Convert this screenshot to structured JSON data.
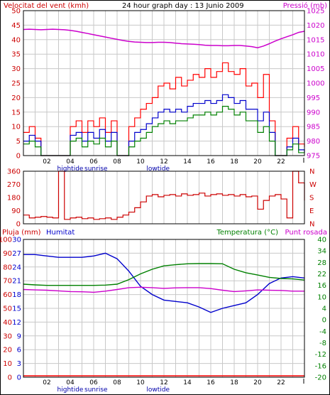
{
  "header": {
    "left_label": "Velocitat del vent (kmh)",
    "center_label": "24 hour graph day : 13 Junio 2009",
    "right_label": "Pressió (mb)"
  },
  "bottom_header": {
    "rain_label": "Pluja (mm)",
    "humidity_label": "Humitat",
    "temp_label": "Temperatura (°C)",
    "dew_label": "Punt rosada"
  },
  "colors": {
    "wind_speed": "#ff0000",
    "wind_avg": "#0000cc",
    "wind_low": "#008000",
    "pressure": "#cc00cc",
    "direction": "#cc0000",
    "humidity": "#0000cc",
    "temperature": "#008000",
    "dew_point": "#cc00cc",
    "rain": "#ff0000",
    "axis_text_left": "#cc0000",
    "axis_text_right": "#cc00cc",
    "marker_text": "#0000aa",
    "grid": "#c8c8c8"
  },
  "x_axis": {
    "hour_ticks": [
      "02",
      "04",
      "06",
      "08",
      "10",
      "12",
      "14",
      "16",
      "18",
      "20",
      "22"
    ],
    "markers": [
      {
        "label": "hightide",
        "hour": 4
      },
      {
        "label": "sunrise",
        "hour": 6.2
      },
      {
        "label": "lowtide",
        "hour": 11.5
      }
    ]
  },
  "chart_data": [
    {
      "type": "line",
      "title": "24 hour graph day : 13 Junio 2009",
      "ylabel": "Velocitat del vent (kmh)",
      "ylim": [
        0,
        50
      ],
      "yticks": [
        "0",
        "5",
        "10",
        "15",
        "20",
        "25",
        "30",
        "35",
        "40",
        "45",
        "50"
      ],
      "y2label": "Pressió (mb)",
      "y2lim": [
        975,
        1025
      ],
      "y2ticks": [
        "975",
        "980",
        "985",
        "990",
        "995",
        "1000",
        "1005",
        "1010",
        "1015",
        "1020",
        "1025"
      ],
      "x_hours": [
        0,
        0.5,
        1,
        1.5,
        2,
        2.5,
        3,
        3.5,
        4,
        4.5,
        5,
        5.5,
        6,
        6.5,
        7,
        7.5,
        8,
        8.5,
        9,
        9.5,
        10,
        10.5,
        11,
        11.5,
        12,
        12.5,
        13,
        13.5,
        14,
        14.5,
        15,
        15.5,
        16,
        16.5,
        17,
        17.5,
        18,
        18.5,
        19,
        19.5,
        20,
        20.5,
        21,
        21.5,
        22,
        22.5,
        23,
        23.5,
        24
      ],
      "series": [
        {
          "name": "gust",
          "values": [
            8,
            10,
            6,
            0,
            0,
            0,
            0,
            0,
            10,
            12,
            8,
            12,
            10,
            13,
            8,
            12,
            0,
            0,
            10,
            13,
            16,
            18,
            20,
            24,
            25,
            23,
            27,
            24,
            26,
            28,
            27,
            30,
            27,
            29,
            32,
            29,
            28,
            30,
            24,
            25,
            20,
            28,
            12,
            0,
            0,
            6,
            10,
            4,
            3
          ]
        },
        {
          "name": "average",
          "values": [
            5,
            7,
            5,
            0,
            0,
            0,
            0,
            0,
            7,
            8,
            5,
            8,
            6,
            9,
            5,
            8,
            0,
            0,
            5,
            8,
            9,
            11,
            13,
            15,
            16,
            15,
            16,
            15,
            17,
            18,
            18,
            19,
            18,
            19,
            21,
            20,
            18,
            19,
            16,
            16,
            12,
            15,
            8,
            0,
            0,
            3,
            6,
            2,
            1
          ]
        },
        {
          "name": "low",
          "values": [
            4,
            5,
            3,
            0,
            0,
            0,
            0,
            0,
            5,
            6,
            3,
            5,
            4,
            6,
            3,
            5,
            0,
            0,
            3,
            5,
            6,
            8,
            10,
            11,
            12,
            11,
            12,
            12,
            13,
            14,
            14,
            15,
            14,
            15,
            17,
            16,
            14,
            15,
            12,
            12,
            8,
            10,
            5,
            0,
            0,
            2,
            4,
            1,
            1
          ]
        },
        {
          "name": "pressure",
          "axis": "y2",
          "values": [
            1018.5,
            1018.6,
            1018.5,
            1018.4,
            1018.5,
            1018.6,
            1018.5,
            1018.4,
            1018.2,
            1017.9,
            1017.5,
            1017.1,
            1016.7,
            1016.3,
            1015.9,
            1015.5,
            1015.1,
            1014.7,
            1014.4,
            1014.2,
            1014.1,
            1014.0,
            1014.0,
            1014.1,
            1014.1,
            1014.0,
            1013.8,
            1013.6,
            1013.5,
            1013.4,
            1013.3,
            1013.1,
            1013.0,
            1013.0,
            1012.9,
            1012.9,
            1013.0,
            1013.0,
            1012.8,
            1012.6,
            1012.2,
            1012.8,
            1013.6,
            1014.5,
            1015.3,
            1016.0,
            1016.7,
            1017.5,
            1017.9
          ]
        }
      ]
    },
    {
      "type": "line",
      "ylabel": "",
      "ylim": [
        0,
        360
      ],
      "yticks": [
        "0",
        "90",
        "180",
        "270",
        "360"
      ],
      "y2ticks": [
        "N",
        "E",
        "S",
        "W",
        "N"
      ],
      "x_hours": [
        0,
        0.5,
        1,
        1.5,
        2,
        2.5,
        3,
        3.5,
        4,
        4.5,
        5,
        5.5,
        6,
        6.5,
        7,
        7.5,
        8,
        8.5,
        9,
        9.5,
        10,
        10.5,
        11,
        11.5,
        12,
        12.5,
        13,
        13.5,
        14,
        14.5,
        15,
        15.5,
        16,
        16.5,
        17,
        17.5,
        18,
        18.5,
        19,
        19.5,
        20,
        20.5,
        21,
        21.5,
        22,
        22.5,
        23,
        23.5,
        24
      ],
      "series": [
        {
          "name": "direction",
          "values": [
            60,
            40,
            45,
            50,
            45,
            40,
            360,
            30,
            40,
            45,
            35,
            40,
            30,
            35,
            40,
            30,
            45,
            60,
            80,
            110,
            150,
            190,
            200,
            185,
            195,
            200,
            190,
            205,
            195,
            200,
            210,
            190,
            200,
            205,
            195,
            200,
            190,
            200,
            185,
            190,
            100,
            160,
            190,
            200,
            170,
            40,
            360,
            280,
            160
          ]
        }
      ]
    },
    {
      "type": "line",
      "ylabel": "Humitat",
      "ylim": [
        0,
        100
      ],
      "yticks": [
        "0",
        "10",
        "20",
        "30",
        "40",
        "50",
        "60",
        "70",
        "80",
        "90",
        "100"
      ],
      "rain_ylim": [
        0,
        30
      ],
      "rain_yticks": [
        "0",
        "3",
        "6",
        "9",
        "12",
        "15",
        "18",
        "21",
        "24",
        "27",
        "30"
      ],
      "y2label": "Temperatura (°C)",
      "y2lim": [
        -20,
        40
      ],
      "y2ticks": [
        "-20",
        "-16",
        "-12",
        "-8",
        "-4",
        "0",
        "4",
        "10",
        "16",
        "22",
        "28",
        "34",
        "40"
      ],
      "x_hours": [
        0,
        1,
        2,
        3,
        4,
        5,
        6,
        7,
        8,
        9,
        10,
        11,
        12,
        13,
        14,
        15,
        16,
        17,
        18,
        19,
        20,
        21,
        22,
        23,
        24
      ],
      "series": [
        {
          "name": "Humitat",
          "values": [
            89,
            89,
            88,
            87,
            87,
            87,
            88,
            90,
            86,
            77,
            66,
            60,
            56,
            55,
            54,
            51,
            47,
            50,
            52,
            54,
            60,
            68,
            72,
            73,
            72
          ]
        },
        {
          "name": "Temperatura (°C)",
          "axis": "y2",
          "values": [
            20.5,
            20.2,
            20.0,
            20.0,
            20.0,
            20.0,
            20.0,
            20.1,
            20.5,
            22.5,
            25.0,
            27.0,
            28.5,
            29.0,
            29.4,
            29.5,
            29.5,
            29.4,
            27.0,
            25.5,
            24.5,
            23.5,
            23.0,
            22.8,
            22.3
          ]
        },
        {
          "name": "Punt rosada",
          "axis": "y2",
          "values": [
            18.2,
            18.0,
            17.9,
            17.6,
            17.3,
            17.2,
            17.0,
            17.5,
            18.2,
            19.0,
            19.2,
            19.0,
            18.7,
            18.9,
            19.0,
            19.0,
            18.6,
            17.9,
            17.3,
            17.6,
            18.0,
            17.9,
            17.8,
            17.5,
            17.5
          ]
        },
        {
          "name": "Pluja (mm)",
          "values": [
            0,
            0,
            0,
            0,
            0,
            0,
            0,
            0,
            0,
            0,
            0,
            0,
            0,
            0,
            0,
            0,
            0,
            0,
            0,
            0,
            0,
            0,
            0,
            0,
            0
          ]
        }
      ]
    }
  ]
}
